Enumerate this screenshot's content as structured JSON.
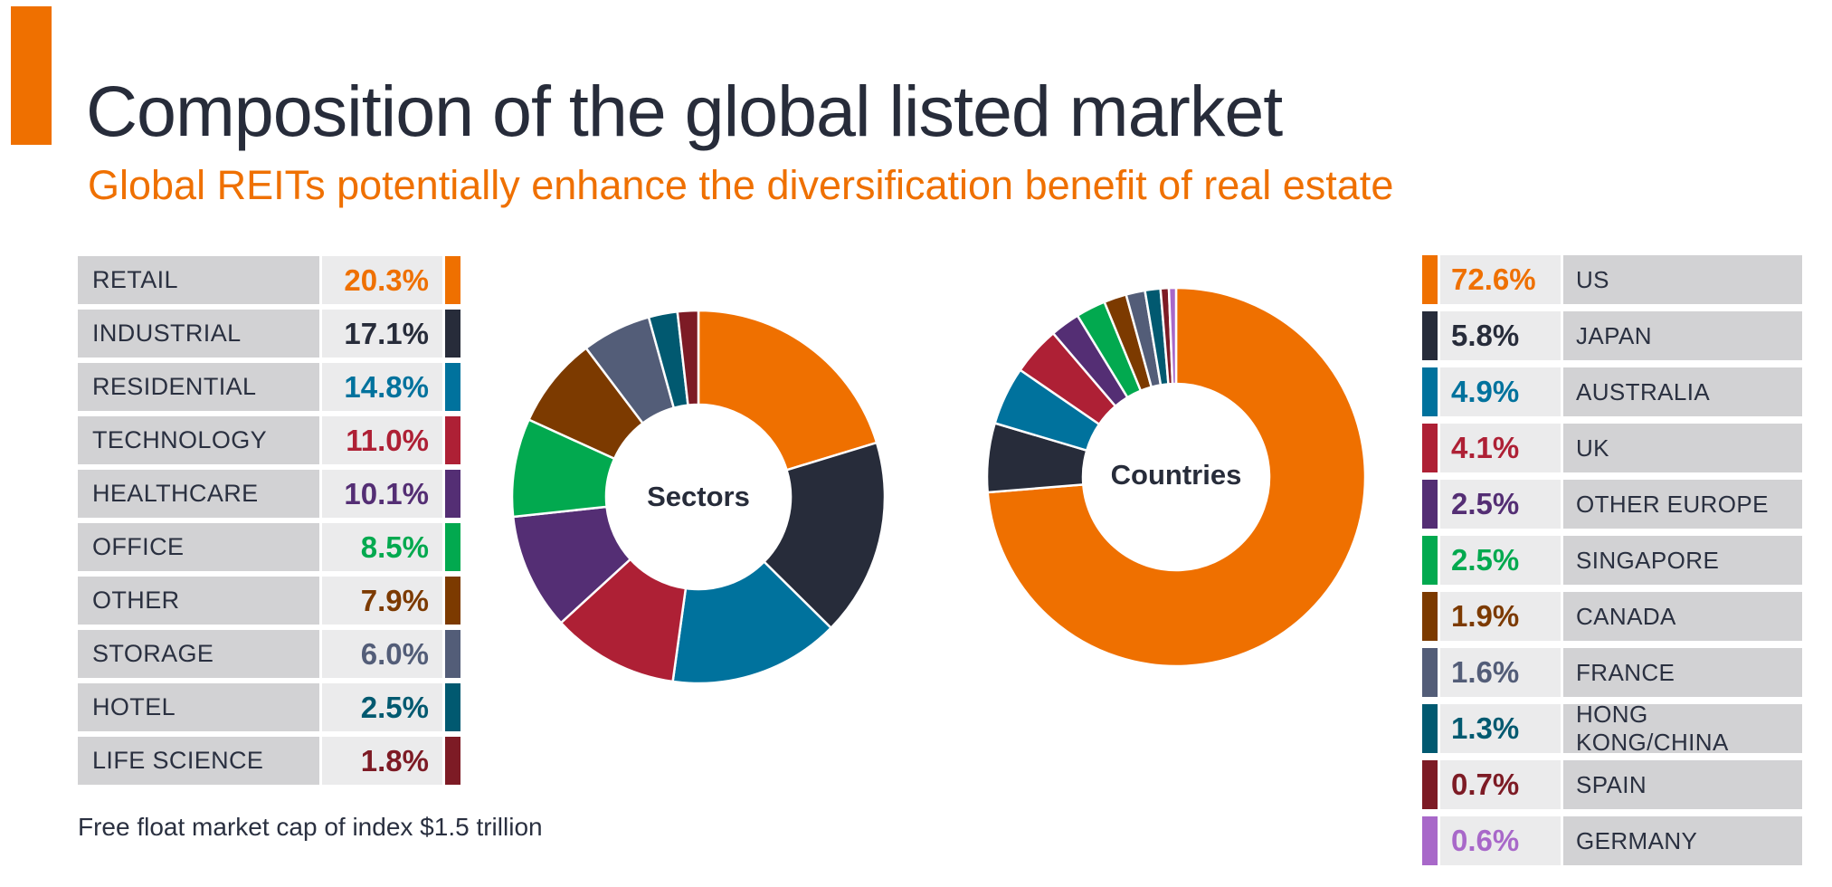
{
  "header": {
    "title": "Composition of the global listed market",
    "subtitle": "Global REITs potentially enhance the diversification benefit of real estate"
  },
  "footnote": "Free float market cap of index $1.5 trillion",
  "palette": {
    "accent_orange": "#EF7000",
    "heading_text": "#272C3A",
    "legend_label_cell_bg": "#D2D2D4",
    "legend_value_cell_bg": "#EBEBEC"
  },
  "chart_data": [
    {
      "type": "pie",
      "style": "donut",
      "center_label": "Sectors",
      "legend_position": "left",
      "units": "%",
      "start_angle_deg": 0,
      "direction": "clockwise",
      "items": [
        {
          "label": "RETAIL",
          "value": 20.3,
          "display": "20.3%",
          "color": "#EF7000"
        },
        {
          "label": "INDUSTRIAL",
          "value": 17.1,
          "display": "17.1%",
          "color": "#272C3A"
        },
        {
          "label": "RESIDENTIAL",
          "value": 14.8,
          "display": "14.8%",
          "color": "#00729D"
        },
        {
          "label": "TECHNOLOGY",
          "value": 11.0,
          "display": "11.0%",
          "color": "#AE2035"
        },
        {
          "label": "HEALTHCARE",
          "value": 10.1,
          "display": "10.1%",
          "color": "#542E74"
        },
        {
          "label": "OFFICE",
          "value": 8.5,
          "display": "8.5%",
          "color": "#02A94F"
        },
        {
          "label": "OTHER",
          "value": 7.9,
          "display": "7.9%",
          "color": "#7C3A00"
        },
        {
          "label": "STORAGE",
          "value": 6.0,
          "display": "6.0%",
          "color": "#535D78"
        },
        {
          "label": "HOTEL",
          "value": 2.5,
          "display": "2.5%",
          "color": "#015970"
        },
        {
          "label": "LIFE SCIENCE",
          "value": 1.8,
          "display": "1.8%",
          "color": "#7D1B25"
        }
      ]
    },
    {
      "type": "pie",
      "style": "donut",
      "center_label": "Countries",
      "legend_position": "right",
      "units": "%",
      "start_angle_deg": 0,
      "direction": "clockwise",
      "items": [
        {
          "label": "US",
          "value": 72.6,
          "display": "72.6%",
          "color": "#EF7000"
        },
        {
          "label": "JAPAN",
          "value": 5.8,
          "display": "5.8%",
          "color": "#272C3A"
        },
        {
          "label": "AUSTRALIA",
          "value": 4.9,
          "display": "4.9%",
          "color": "#00729D"
        },
        {
          "label": "UK",
          "value": 4.1,
          "display": "4.1%",
          "color": "#AE2035"
        },
        {
          "label": "OTHER EUROPE",
          "value": 2.5,
          "display": "2.5%",
          "color": "#542E74"
        },
        {
          "label": "SINGAPORE",
          "value": 2.5,
          "display": "2.5%",
          "color": "#02A94F"
        },
        {
          "label": "CANADA",
          "value": 1.9,
          "display": "1.9%",
          "color": "#7C3A00"
        },
        {
          "label": "FRANCE",
          "value": 1.6,
          "display": "1.6%",
          "color": "#535D78"
        },
        {
          "label": "HONG KONG/CHINA",
          "value": 1.3,
          "display": "1.3%",
          "color": "#015970"
        },
        {
          "label": "SPAIN",
          "value": 0.7,
          "display": "0.7%",
          "color": "#7D1B25"
        },
        {
          "label": "GERMANY",
          "value": 0.6,
          "display": "0.6%",
          "color": "#A868C9"
        }
      ]
    }
  ]
}
